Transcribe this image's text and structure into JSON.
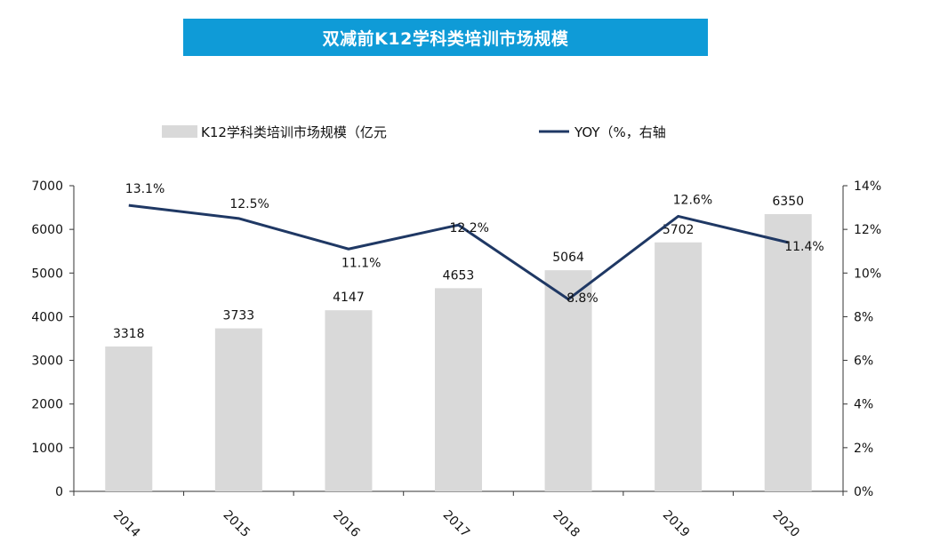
{
  "chart_data": {
    "type": "bar",
    "title": "双减前K12学科类培训市场规模",
    "categories": [
      "2014",
      "2015",
      "2016",
      "2017",
      "2018",
      "2019",
      "2020"
    ],
    "series": [
      {
        "name": "K12学科类培训市场规模（亿元",
        "type": "bar",
        "axis": "left",
        "values": [
          3318,
          3733,
          4147,
          4653,
          5064,
          5702,
          6350
        ],
        "labels": [
          "3318",
          "3733",
          "4147",
          "4653",
          "5064",
          "5702",
          "6350"
        ],
        "color": "#d9d9d9"
      },
      {
        "name": "YOY（%，右轴",
        "type": "line",
        "axis": "right",
        "values": [
          13.1,
          12.5,
          11.1,
          12.2,
          8.8,
          12.6,
          11.4
        ],
        "labels": [
          "13.1%",
          "12.5%",
          "11.1%",
          "12.2%",
          "8.8%",
          "12.6%",
          "11.4%"
        ],
        "color": "#1f3864"
      }
    ],
    "ylim_left": [
      0,
      7000
    ],
    "yticks_left": [
      "0",
      "1000",
      "2000",
      "3000",
      "4000",
      "5000",
      "6000",
      "7000"
    ],
    "ylim_right": [
      0,
      14
    ],
    "yticks_right": [
      "0%",
      "2%",
      "4%",
      "6%",
      "8%",
      "10%",
      "12%",
      "14%"
    ],
    "grid": false,
    "legend_position": "top"
  },
  "colors": {
    "title_bg": "#0f9bd7",
    "bar": "#d9d9d9",
    "line": "#1f3864"
  }
}
